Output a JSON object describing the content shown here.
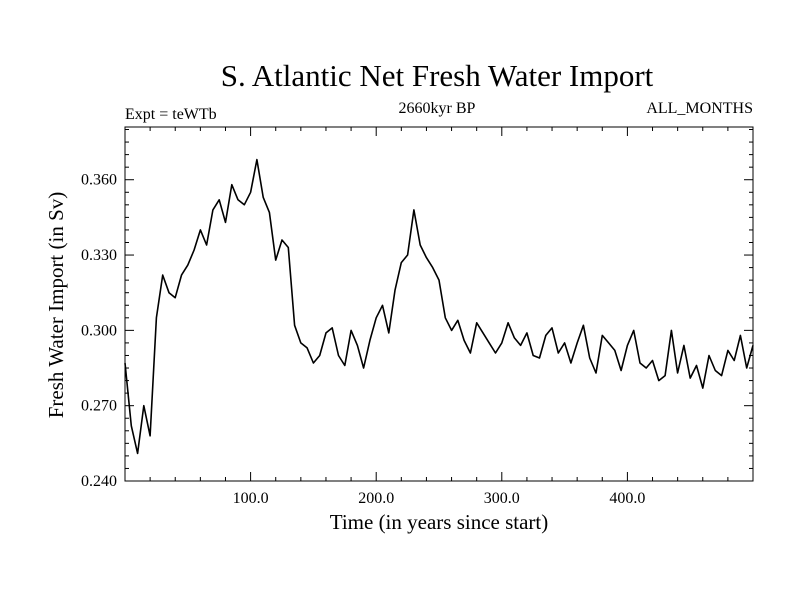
{
  "chart_data": {
    "type": "line",
    "title": "S. Atlantic Net Fresh Water Import",
    "subtitle_left": "Expt = teWTb",
    "subtitle_center": "2660kyr BP",
    "subtitle_right": "ALL_MONTHS",
    "xlabel": "Time (in years since start)",
    "ylabel": "Fresh Water Import (in Sv)",
    "xlim": [
      0,
      500
    ],
    "ylim": [
      0.24,
      0.381
    ],
    "x_ticks": [
      100,
      200,
      300,
      400
    ],
    "x_tick_labels": [
      "100.0",
      "200.0",
      "300.0",
      "400.0"
    ],
    "y_ticks": [
      0.24,
      0.27,
      0.3,
      0.33,
      0.36
    ],
    "y_tick_labels": [
      "0.240",
      "0.270",
      "0.300",
      "0.330",
      "0.360"
    ],
    "grid": false,
    "series": [
      {
        "name": "S. Atlantic Net Fresh Water Import",
        "color": "#000000",
        "x_start": 0,
        "x_step": 5,
        "values": [
          0.287,
          0.262,
          0.251,
          0.27,
          0.258,
          0.305,
          0.322,
          0.315,
          0.313,
          0.322,
          0.326,
          0.332,
          0.34,
          0.334,
          0.348,
          0.352,
          0.343,
          0.358,
          0.352,
          0.35,
          0.355,
          0.368,
          0.353,
          0.347,
          0.328,
          0.336,
          0.333,
          0.302,
          0.295,
          0.293,
          0.287,
          0.29,
          0.299,
          0.301,
          0.29,
          0.286,
          0.3,
          0.294,
          0.285,
          0.296,
          0.305,
          0.31,
          0.299,
          0.316,
          0.327,
          0.33,
          0.348,
          0.334,
          0.329,
          0.325,
          0.32,
          0.305,
          0.3,
          0.304,
          0.296,
          0.291,
          0.303,
          0.299,
          0.295,
          0.291,
          0.295,
          0.303,
          0.297,
          0.294,
          0.299,
          0.29,
          0.289,
          0.298,
          0.301,
          0.291,
          0.295,
          0.287,
          0.295,
          0.302,
          0.289,
          0.283,
          0.298,
          0.295,
          0.292,
          0.284,
          0.294,
          0.3,
          0.287,
          0.285,
          0.288,
          0.28,
          0.282,
          0.3,
          0.283,
          0.294,
          0.281,
          0.286,
          0.277,
          0.29,
          0.284,
          0.282,
          0.292,
          0.288,
          0.298,
          0.285,
          0.294
        ]
      }
    ]
  }
}
